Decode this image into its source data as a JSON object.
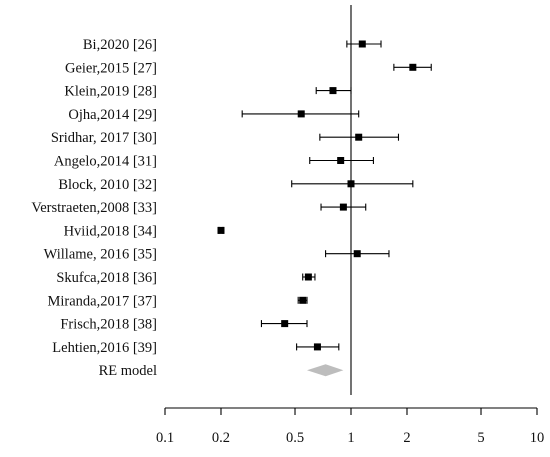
{
  "chart_data": {
    "type": "forest",
    "title": "",
    "xlabel": "",
    "ylabel": "",
    "x_scale": "log",
    "xlim": [
      0.1,
      10
    ],
    "x_ticks": [
      0.1,
      0.2,
      0.5,
      1,
      2,
      5,
      10
    ],
    "x_tick_labels": [
      "0.1",
      "0.2",
      "0.5",
      "1",
      "2",
      "5",
      "10"
    ],
    "reference_line": 1,
    "grid": false,
    "studies": [
      {
        "label": "Bi,2020 [26]",
        "estimate": 1.15,
        "lower": 0.95,
        "upper": 1.45
      },
      {
        "label": "Geier,2015 [27]",
        "estimate": 2.15,
        "lower": 1.7,
        "upper": 2.7
      },
      {
        "label": "Klein,2019 [28]",
        "estimate": 0.8,
        "lower": 0.65,
        "upper": 1.0
      },
      {
        "label": "Ojha,2014 [29]",
        "estimate": 0.54,
        "lower": 0.26,
        "upper": 1.1
      },
      {
        "label": "Sridhar, 2017 [30]",
        "estimate": 1.1,
        "lower": 0.68,
        "upper": 1.8
      },
      {
        "label": "Angelo,2014 [31]",
        "estimate": 0.88,
        "lower": 0.6,
        "upper": 1.32
      },
      {
        "label": "Block, 2010 [32]",
        "estimate": 1.0,
        "lower": 0.48,
        "upper": 2.15
      },
      {
        "label": "Verstraeten,2008 [33]",
        "estimate": 0.91,
        "lower": 0.69,
        "upper": 1.2
      },
      {
        "label": "Hviid,2018 [34]",
        "estimate": 0.2,
        "lower": 0.195,
        "upper": 0.205
      },
      {
        "label": "Willame, 2016 [35]",
        "estimate": 1.08,
        "lower": 0.73,
        "upper": 1.6
      },
      {
        "label": "Skufca,2018 [36]",
        "estimate": 0.59,
        "lower": 0.55,
        "upper": 0.64
      },
      {
        "label": "Miranda,2017 [37]",
        "estimate": 0.55,
        "lower": 0.52,
        "upper": 0.58
      },
      {
        "label": "Frisch,2018 [38]",
        "estimate": 0.44,
        "lower": 0.33,
        "upper": 0.58
      },
      {
        "label": "Lehtien,2016 [39]",
        "estimate": 0.66,
        "lower": 0.51,
        "upper": 0.86
      }
    ],
    "summary": {
      "label": "RE model",
      "estimate": 0.73,
      "lower": 0.58,
      "upper": 0.91
    },
    "colors": {
      "marker": "#000000",
      "summary": "#bdbdbd",
      "line": "#000000"
    }
  }
}
